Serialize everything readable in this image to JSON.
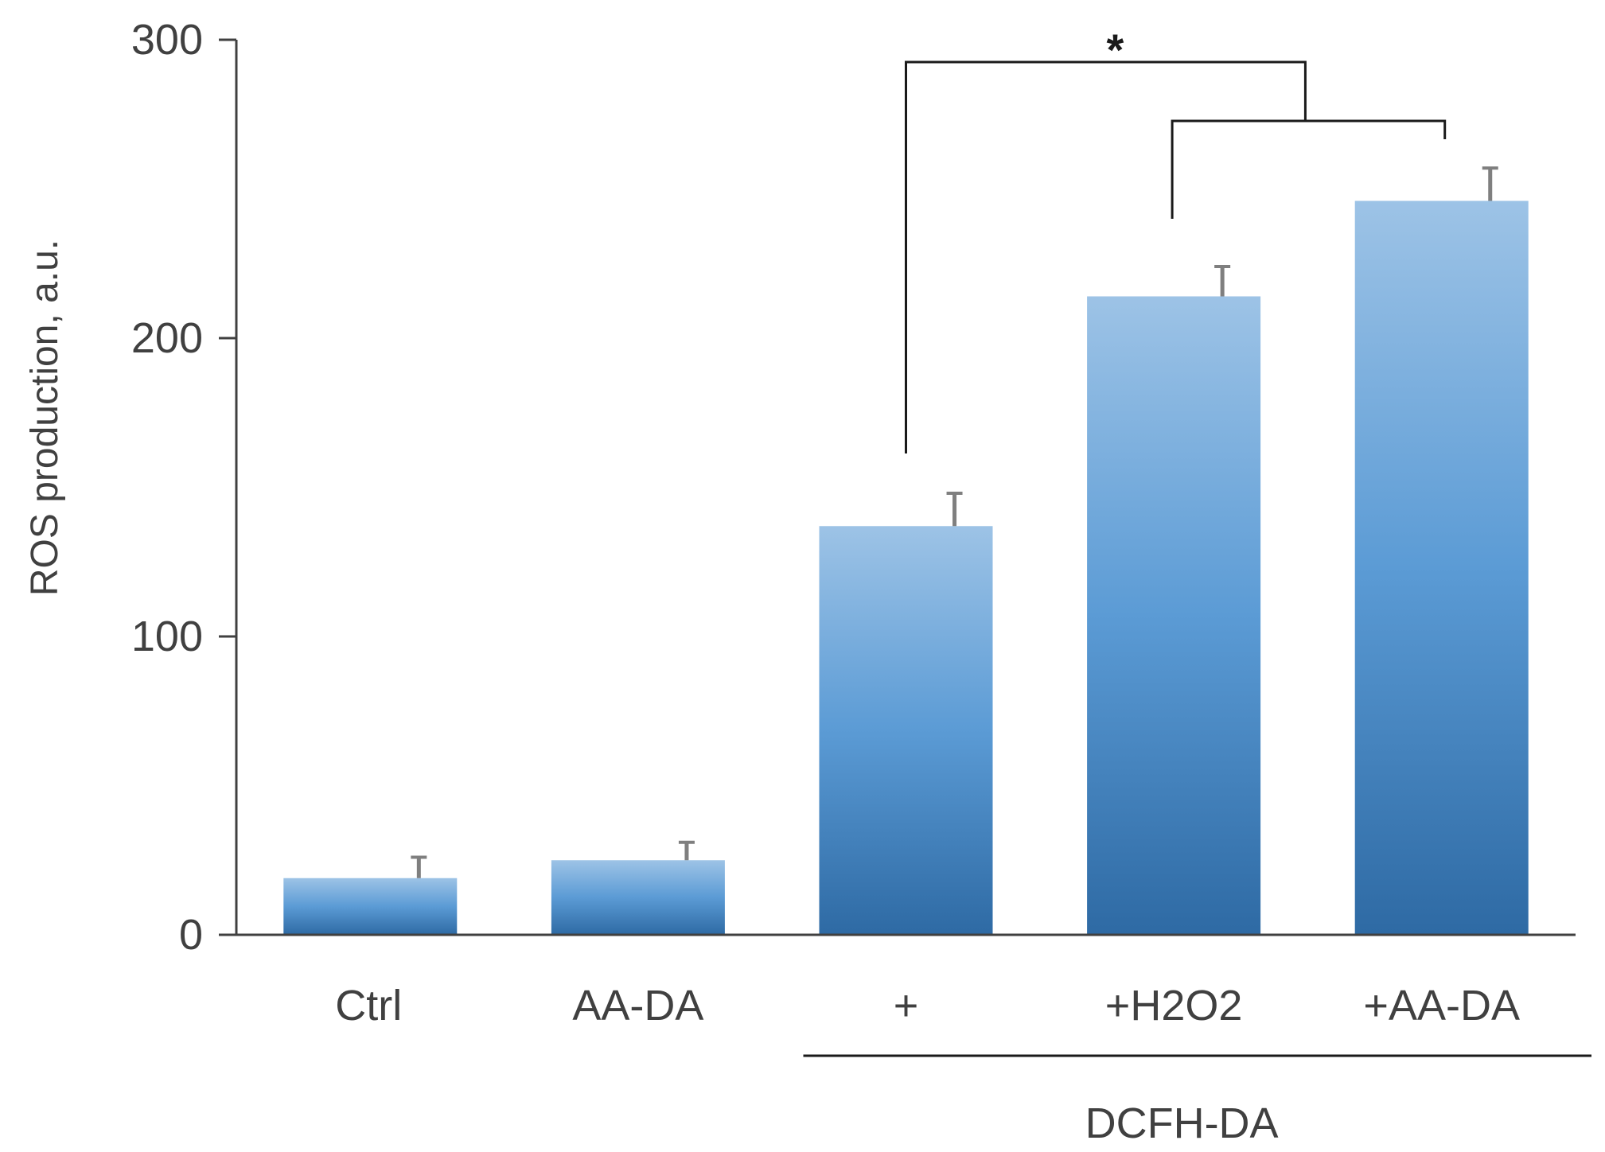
{
  "chart_data": {
    "type": "bar",
    "title": "",
    "xlabel": "",
    "ylabel": "ROS production, a.u.",
    "ylim": [
      0,
      300
    ],
    "yticks": [
      0,
      100,
      200,
      300
    ],
    "categories": [
      "Ctrl",
      "AA-DA",
      "+",
      "+H2O2",
      "+AA-DA"
    ],
    "values": [
      19,
      25,
      137,
      214,
      246
    ],
    "errors": [
      7,
      6,
      11,
      10,
      11
    ],
    "group": {
      "label": "DCFH-DA",
      "start_index": 2,
      "end_index": 4
    },
    "significance": [
      {
        "label": "*",
        "from": 2,
        "to_bracket": [
          3,
          4
        ]
      }
    ],
    "colors": {
      "bar_top": "#9dc3e6",
      "bar_mid": "#5b9bd5",
      "bar_bottom": "#2e6aa4",
      "axis": "#404040",
      "text": "#404040"
    }
  }
}
